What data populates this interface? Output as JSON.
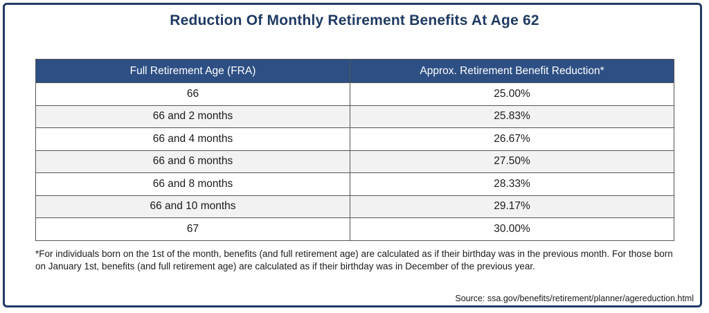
{
  "title": "Reduction Of Monthly Retirement Benefits At Age 62",
  "table": {
    "headers": [
      "Full Retirement Age (FRA)",
      "Approx. Retirement Benefit Reduction*"
    ],
    "rows": [
      [
        "66",
        "25.00%"
      ],
      [
        "66 and 2 months",
        "25.83%"
      ],
      [
        "66 and 4 months",
        "26.67%"
      ],
      [
        "66 and 6 months",
        "27.50%"
      ],
      [
        "66 and 8 months",
        "28.33%"
      ],
      [
        "66 and 10 months",
        "29.17%"
      ],
      [
        "67",
        "30.00%"
      ]
    ]
  },
  "footnote": "*For individuals born on the 1st of the month, benefits (and full retirement age) are calculated as if their birthday was in the previous month. For those born on January 1st, benefits (and full retirement age) are calculated as if their birthday was in December of the previous year.",
  "source": "Source: ssa.gov/benefits/retirement/planner/agereduction.html",
  "colors": {
    "header_bg": "#2d4f84",
    "title": "#1f3a64",
    "border": "#1f3a64",
    "alt_row": "#f2f2f2"
  }
}
